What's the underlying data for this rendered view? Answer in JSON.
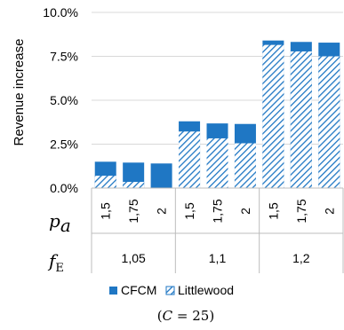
{
  "chart_data": {
    "type": "bar",
    "stacking": "overlay",
    "ylim": [
      0,
      0.1
    ],
    "y_ticks": [
      "0.0%",
      "2.5%",
      "5.0%",
      "7.5%",
      "10.0%"
    ],
    "y_tick_values": [
      0,
      0.025,
      0.05,
      0.075,
      0.1
    ],
    "ylabel": "Revenue increase",
    "grid": true,
    "legend_position": "bottom",
    "x_row1_label": "p",
    "x_row1_label_sub": "a",
    "x_row2_label": "f",
    "x_row2_label_sub": "E",
    "groups": [
      {
        "label": "1,05",
        "categories": [
          "1,5",
          "1,75",
          "2"
        ]
      },
      {
        "label": "1,1",
        "categories": [
          "1,5",
          "1,75",
          "2"
        ]
      },
      {
        "label": "1,2",
        "categories": [
          "1,5",
          "1,75",
          "2"
        ]
      }
    ],
    "series": [
      {
        "name": "CFCM",
        "color": "#1f77c4",
        "pattern": "solid",
        "values": [
          0.015,
          0.0145,
          0.014,
          0.038,
          0.0368,
          0.0365,
          0.084,
          0.0832,
          0.0828
        ]
      },
      {
        "name": "Littlewood",
        "color": "#1f77c4",
        "pattern": "hatch",
        "values": [
          0.007,
          0.0035,
          0.0,
          0.0322,
          0.0283,
          0.0255,
          0.0815,
          0.0778,
          0.075
        ]
      }
    ]
  },
  "footnote": {
    "open": "(",
    "var": "C",
    "rest": " = 25)"
  }
}
